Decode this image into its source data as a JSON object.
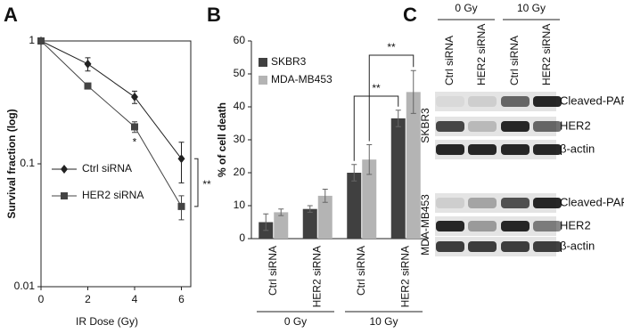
{
  "chart_data": [
    {
      "type": "line",
      "panel": "A",
      "xlabel": "IR  Dose (Gy)",
      "ylabel": "Survival fraction (log)",
      "log_y": true,
      "x": [
        0,
        2,
        4,
        6
      ],
      "xlim": [
        0,
        6.4
      ],
      "xticks": [
        0,
        2,
        4,
        6
      ],
      "ylim": [
        0.01,
        1
      ],
      "yticks": [
        0.01,
        0.1,
        1
      ],
      "series": [
        {
          "name": "Ctrl siRNA",
          "color": "#222222",
          "marker": "diamond",
          "values": [
            1,
            0.65,
            0.35,
            0.11
          ],
          "errors": [
            0,
            0.08,
            0.04,
            0.04
          ]
        },
        {
          "name": "HER2 siRNA",
          "color": "#444444",
          "marker": "square",
          "values": [
            1,
            0.43,
            0.2,
            0.045
          ],
          "errors": [
            0,
            0.02,
            0.02,
            0.01
          ]
        }
      ],
      "annotations": [
        "*",
        "**"
      ]
    },
    {
      "type": "bar",
      "panel": "B",
      "ylabel": "% of cell death",
      "categories": [
        "Ctrl siRNA",
        "HER2 siRNA",
        "Ctrl siRNA",
        "HER2 siRNA"
      ],
      "group_labels": [
        "0 Gy",
        "10 Gy"
      ],
      "ylim": [
        0,
        60
      ],
      "yticks": [
        0,
        10,
        20,
        30,
        40,
        50,
        60
      ],
      "series": [
        {
          "name": "SKBR3",
          "color": "#404040",
          "values": [
            5,
            9,
            20,
            36.5
          ],
          "errors": [
            2.5,
            1,
            2.5,
            2.5
          ]
        },
        {
          "name": "MDA-MB453",
          "color": "#b4b4b4",
          "values": [
            8,
            13,
            24,
            44.5
          ],
          "errors": [
            1,
            2,
            4.5,
            6.5
          ]
        }
      ],
      "annotations": [
        "**",
        "**"
      ]
    }
  ],
  "blot": {
    "panel": "C",
    "group_labels": [
      "0 Gy",
      "10 Gy"
    ],
    "lanes": [
      "Ctrl siRNA",
      "HER2 siRNA",
      "Ctrl siRNA",
      "HER2 siRNA"
    ],
    "cell_lines": [
      {
        "name": "SKBR3",
        "bands": [
          "Cleaved-PARP",
          "HER2",
          "β-actin"
        ]
      },
      {
        "name": "MDA-MB453",
        "bands": [
          "Cleaved-PARP",
          "HER2",
          "β-actin"
        ]
      }
    ]
  }
}
